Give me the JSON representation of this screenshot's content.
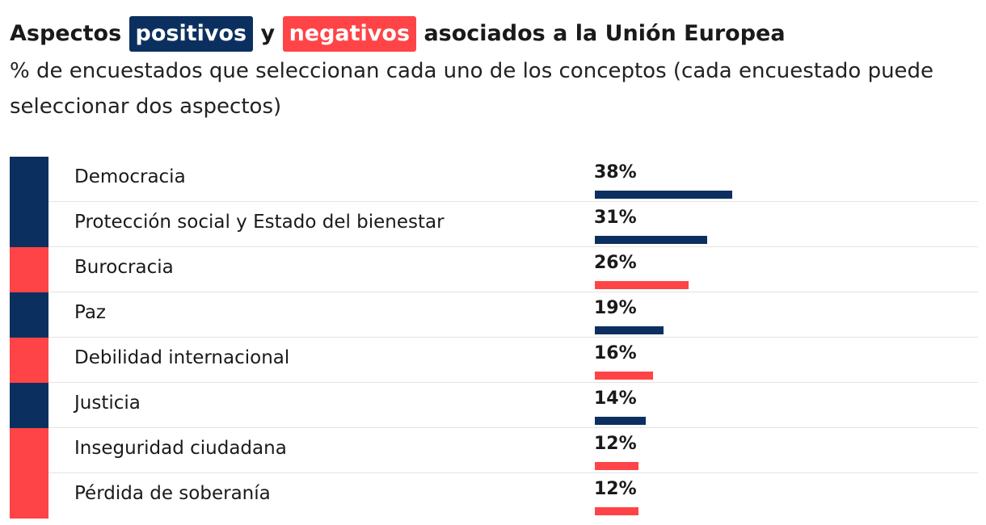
{
  "header": {
    "title_part1": "Aspectos",
    "title_positive": "positivos",
    "title_part2": "y",
    "title_negative": "negativos",
    "title_part3": "asociados a la Unión Europea",
    "subtitle": "% de encuestados que seleccionan cada uno de los conceptos (cada encuestado puede seleccionar dos aspectos)"
  },
  "colors": {
    "positive": "#0b3060",
    "negative": "#ff4447"
  },
  "chart_data": {
    "type": "bar",
    "orientation": "horizontal",
    "title": "Aspectos positivos y negativos asociados a la Unión Europea",
    "subtitle": "% de encuestados que seleccionan cada uno de los conceptos (cada encuestado puede seleccionar dos aspectos)",
    "unit": "%",
    "xlim": [
      0,
      100
    ],
    "legend": [
      {
        "name": "positivos",
        "color": "#0b3060"
      },
      {
        "name": "negativos",
        "color": "#ff4447"
      }
    ],
    "rows": [
      {
        "label": "Democracia",
        "value": 38,
        "value_label": "38%",
        "kind": "positive"
      },
      {
        "label": "Protección social y Estado del bienestar",
        "value": 31,
        "value_label": "31%",
        "kind": "positive"
      },
      {
        "label": "Burocracia",
        "value": 26,
        "value_label": "26%",
        "kind": "negative"
      },
      {
        "label": "Paz",
        "value": 19,
        "value_label": "19%",
        "kind": "positive"
      },
      {
        "label": "Debilidad internacional",
        "value": 16,
        "value_label": "16%",
        "kind": "negative"
      },
      {
        "label": "Justicia",
        "value": 14,
        "value_label": "14%",
        "kind": "positive"
      },
      {
        "label": "Inseguridad ciudadana",
        "value": 12,
        "value_label": "12%",
        "kind": "negative"
      },
      {
        "label": "Pérdida de soberanía",
        "value": 12,
        "value_label": "12%",
        "kind": "negative"
      }
    ]
  }
}
